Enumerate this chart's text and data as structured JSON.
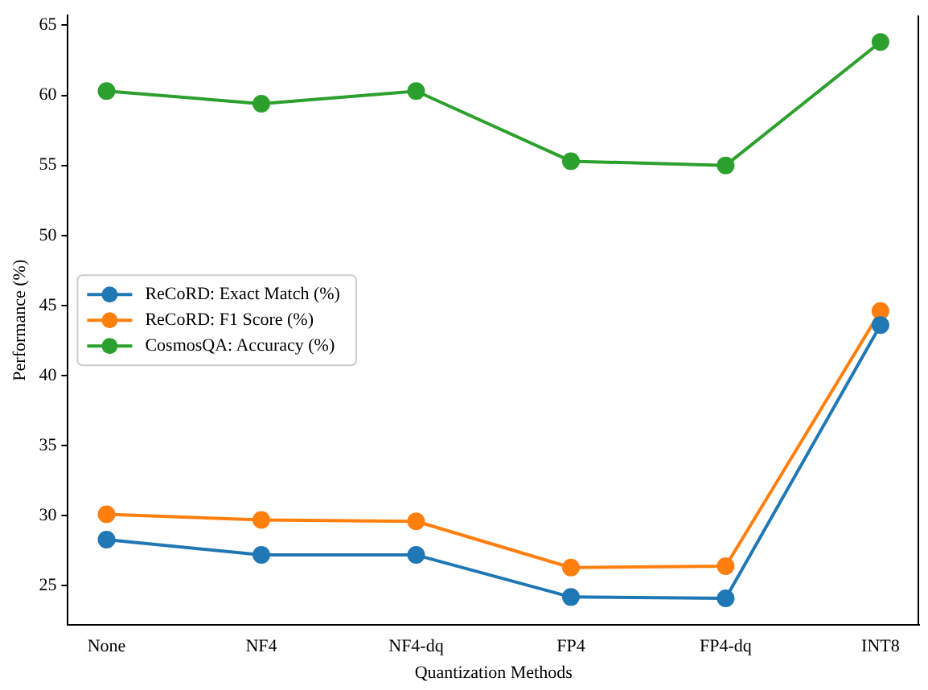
{
  "chart_data": {
    "type": "line",
    "xlabel": "Quantization Methods",
    "ylabel": "Performance (%)",
    "categories": [
      "None",
      "NF4",
      "NF4-dq",
      "FP4",
      "FP4-dq",
      "INT8"
    ],
    "series": [
      {
        "name": "ReCoRD: Exact Match (%)",
        "color": "#1f77b4",
        "values": [
          28.3,
          27.2,
          27.2,
          24.2,
          24.1,
          43.6
        ]
      },
      {
        "name": "ReCoRD: F1 Score (%)",
        "color": "#ff7f0e",
        "values": [
          30.1,
          29.7,
          29.6,
          26.3,
          26.4,
          44.6
        ]
      },
      {
        "name": "CosmosQA: Accuracy (%)",
        "color": "#2ca02c",
        "values": [
          60.3,
          59.4,
          60.3,
          55.3,
          55.0,
          63.8
        ]
      }
    ],
    "ylim": [
      22.2,
      65.7
    ],
    "yticks": [
      25,
      30,
      35,
      40,
      45,
      50,
      55,
      60,
      65
    ],
    "grid": false,
    "legend": "center left",
    "marker": "circle",
    "line_style": "solid"
  }
}
